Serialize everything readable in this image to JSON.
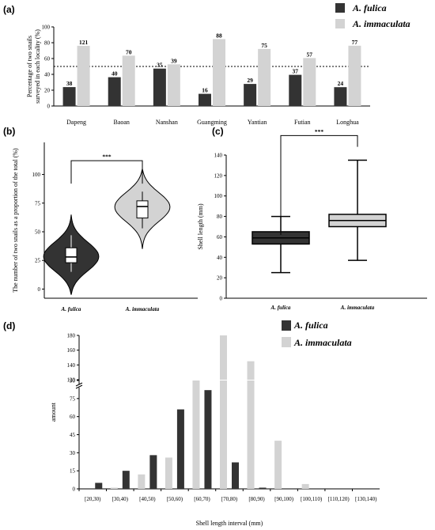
{
  "labels": {
    "a": "(a)",
    "b": "(b)",
    "c": "(c)",
    "d": "(d)"
  },
  "colors": {
    "fulica": "#333333",
    "immaculata": "#d3d3d3"
  },
  "legend": {
    "fulica": "A. fulica",
    "immaculata": "A. immaculata"
  },
  "chart_data": [
    {
      "id": "a",
      "type": "bar",
      "title": "",
      "ylabel": "Percentage of two snails surveyed in each locality (%)",
      "ylabel_line1": "Percentage of two snails",
      "ylabel_line2": "surveyed in each locality (%)",
      "xlabel": "",
      "ylim": [
        0,
        100
      ],
      "yticks": [
        0,
        20,
        40,
        60,
        80,
        100
      ],
      "reference_line": 50,
      "categories": [
        "Dapeng",
        "Baoan",
        "Nanshan",
        "Guangming",
        "Yantian",
        "Futian",
        "Longhua"
      ],
      "series": [
        {
          "name": "A. fulica",
          "values": [
            23.9,
            36.4,
            47.3,
            15.4,
            27.9,
            39.4,
            23.8
          ],
          "labels": [
            "38",
            "40",
            "35",
            "16",
            "29",
            "37",
            "24"
          ]
        },
        {
          "name": "A. immaculata",
          "values": [
            76.1,
            63.6,
            52.7,
            84.6,
            72.1,
            60.6,
            76.2
          ],
          "labels": [
            "121",
            "70",
            "39",
            "88",
            "75",
            "57",
            "77"
          ]
        }
      ]
    },
    {
      "id": "b",
      "type": "violin",
      "ylabel": "The number of two snails as a proportion of the total (%)",
      "ylim": [
        -8,
        128
      ],
      "yticks": [
        0,
        25,
        50,
        75,
        100
      ],
      "categories": [
        "A. fulica",
        "A. immaculata"
      ],
      "significance": "***",
      "box": [
        {
          "min": 15,
          "q1": 23,
          "median": 28,
          "q3": 36,
          "max": 47
        },
        {
          "min": 53,
          "q1": 62,
          "median": 72,
          "q3": 77,
          "max": 85
        }
      ],
      "range": [
        [
          -5,
          65
        ],
        [
          35,
          105
        ]
      ]
    },
    {
      "id": "c",
      "type": "boxplot",
      "ylabel": "Shell length (mm)",
      "ylim": [
        0,
        140
      ],
      "yticks": [
        0,
        20,
        40,
        60,
        80,
        100,
        120,
        140
      ],
      "categories": [
        "A. fulica",
        "A. immaculata"
      ],
      "significance": "***",
      "box": [
        {
          "min": 25,
          "q1": 53,
          "median": 59,
          "q3": 65,
          "max": 80
        },
        {
          "min": 37,
          "q1": 70,
          "median": 76,
          "q3": 82,
          "max": 135
        }
      ]
    },
    {
      "id": "d",
      "type": "bar",
      "title": "",
      "ylabel": "amount",
      "xlabel": "Shell length interval  (mm)",
      "ylim_lower": [
        0,
        90
      ],
      "yticks_lower": [
        0,
        15,
        30,
        45,
        60,
        75,
        90
      ],
      "ylim_upper": [
        120,
        180
      ],
      "yticks_upper": [
        120,
        140,
        160,
        180
      ],
      "categories": [
        "[20,30)",
        "[30,40)",
        "[40,50)",
        "[50,60)",
        "[60,70)",
        "[70,80)",
        "[80,90)",
        "[90,100)",
        "[100,110)",
        "[110,120)",
        "[130,140)"
      ],
      "series": [
        {
          "name": "A. immaculata",
          "values": [
            0,
            1,
            12,
            26,
            95,
            180,
            145,
            40,
            4,
            0,
            0
          ]
        },
        {
          "name": "A. fulica",
          "values": [
            5,
            15,
            28,
            66,
            82,
            22,
            1,
            0,
            0,
            0,
            0
          ]
        }
      ]
    }
  ]
}
